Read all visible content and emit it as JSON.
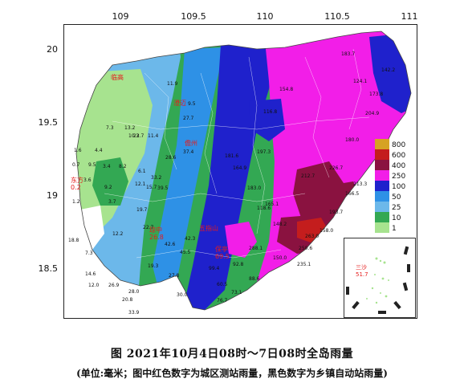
{
  "map": {
    "lon_ticks": [
      "109",
      "109.5",
      "110",
      "110.5",
      "111"
    ],
    "lat_ticks": [
      "20",
      "19.5",
      "19",
      "18.5"
    ],
    "legend": {
      "levels": [
        {
          "label": "800",
          "color": "#d6a323"
        },
        {
          "label": "600",
          "color": "#c41d1d"
        },
        {
          "label": "400",
          "color": "#8a1240"
        },
        {
          "label": "250",
          "color": "#f21ee8"
        },
        {
          "label": "100",
          "color": "#1f21cc"
        },
        {
          "label": "50",
          "color": "#2e91e6"
        },
        {
          "label": "25",
          "color": "#6cb8ea"
        },
        {
          "label": "10",
          "color": "#33a853"
        },
        {
          "label": "1",
          "color": "#a7e38f"
        }
      ]
    },
    "city_labels": [
      {
        "name": "东方",
        "value": "0.2"
      },
      {
        "name": "儋州",
        "value": ""
      },
      {
        "name": "临高",
        "value": ""
      },
      {
        "name": "澄迈",
        "value": ""
      },
      {
        "name": "琼中",
        "value": "26.8"
      },
      {
        "name": "五指山",
        "value": ""
      },
      {
        "name": "保亭",
        "value": "69.5"
      },
      {
        "name": "三沙",
        "value": "51.7"
      }
    ],
    "station_values": [
      "1.6",
      "4.4",
      "7.3",
      "13.2",
      "0.7",
      "9.5",
      "3.4",
      "8.2",
      "3.6",
      "22.7",
      "11.9",
      "6.1",
      "9.2",
      "12.1",
      "15.7",
      "1.2",
      "3.7",
      "19.7",
      "12.2",
      "18.8",
      "7.3",
      "14.6",
      "12.0",
      "26.9",
      "28.0",
      "20.8",
      "33.9",
      "30.0",
      "22.7",
      "42.6",
      "19.3",
      "27.8",
      "33.2",
      "39.5",
      "28.6",
      "37.4",
      "10.3",
      "11.4",
      "27.7",
      "9.5",
      "45.5",
      "42.3",
      "116.8",
      "154.8",
      "183.7",
      "142.2",
      "124.1",
      "173.8",
      "204.9",
      "212.7",
      "180.0",
      "226.7",
      "213.3",
      "166.5",
      "193.7",
      "158.0",
      "250.6",
      "263.0",
      "235.1",
      "150.0",
      "288.1",
      "148.2",
      "118.6",
      "165.1",
      "183.0",
      "164.9",
      "181.6",
      "197.3",
      "99.4",
      "92.8",
      "88.6",
      "73.1",
      "76.7",
      "60.5"
    ]
  },
  "caption": {
    "line1": "图   2021年10月4日08时～7日08时全岛雨量",
    "line2": "(单位:毫米；图中红色数字为城区测站雨量，黑色数字为乡镇自动站雨量)"
  }
}
